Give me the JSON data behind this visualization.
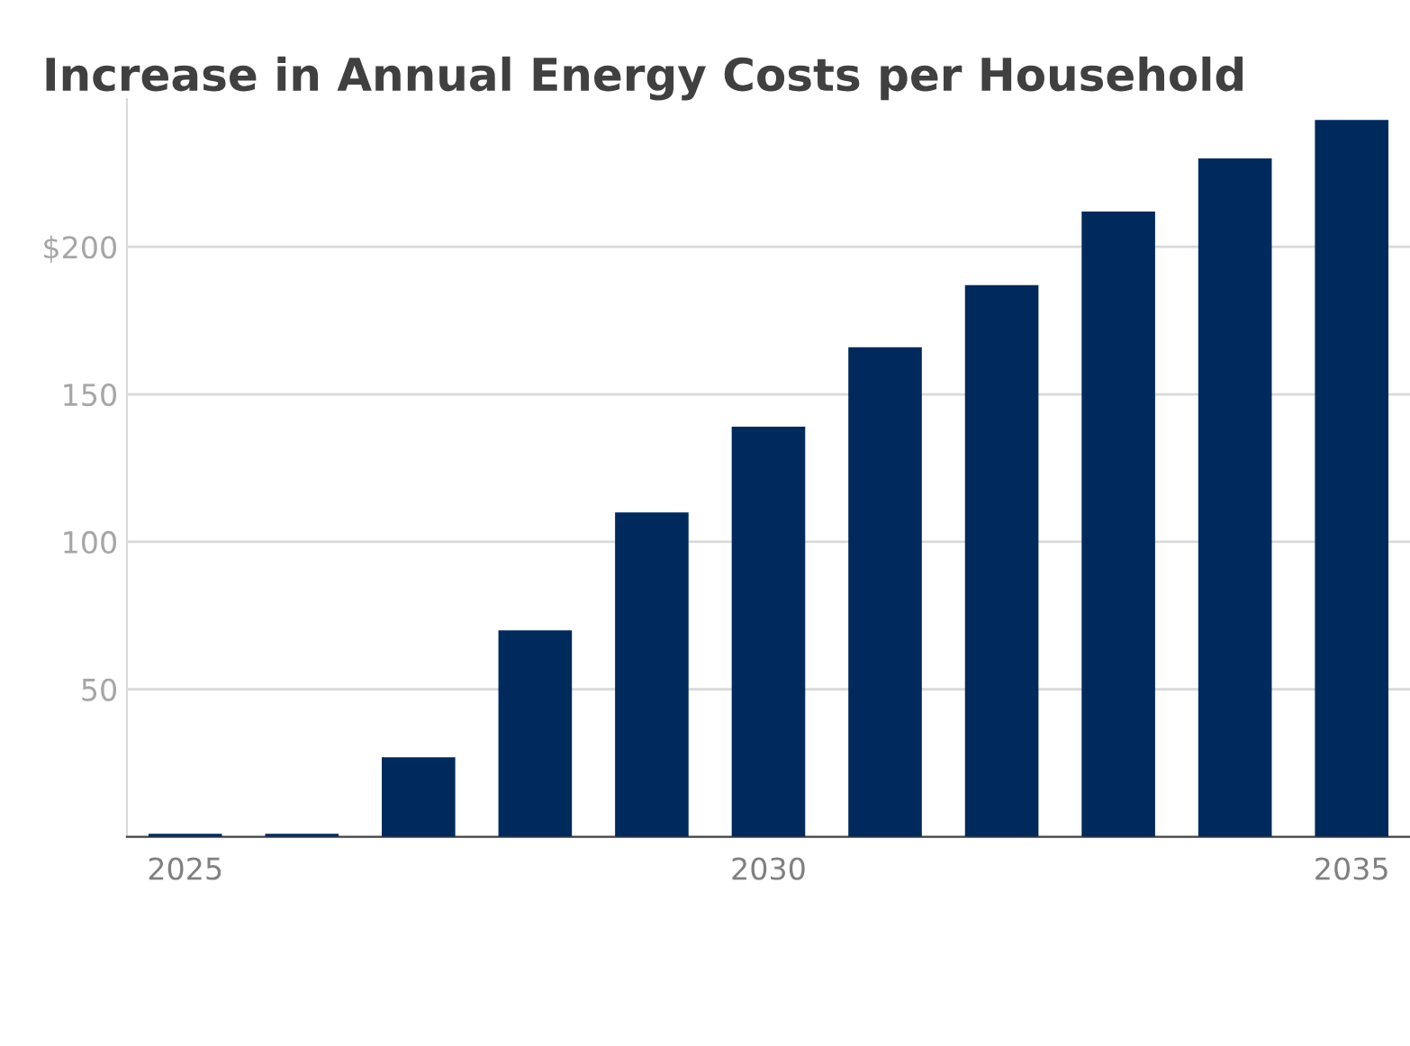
{
  "chart_data": {
    "type": "bar",
    "title": "Increase in Annual Energy Costs per Household",
    "x": [
      2025,
      2026,
      2027,
      2028,
      2029,
      2030,
      2031,
      2032,
      2033,
      2034,
      2035
    ],
    "values": [
      1,
      1,
      27,
      70,
      110,
      139,
      166,
      187,
      212,
      230,
      243
    ],
    "color": "#002a5c",
    "xlim": [
      2024.5,
      2035.5
    ],
    "xticks": [
      2025,
      2030,
      2035
    ],
    "ylim": [
      0,
      250
    ],
    "yticks": [
      50,
      100,
      150,
      {
        "value": 200,
        "label": "$200"
      }
    ],
    "grid": "y"
  }
}
